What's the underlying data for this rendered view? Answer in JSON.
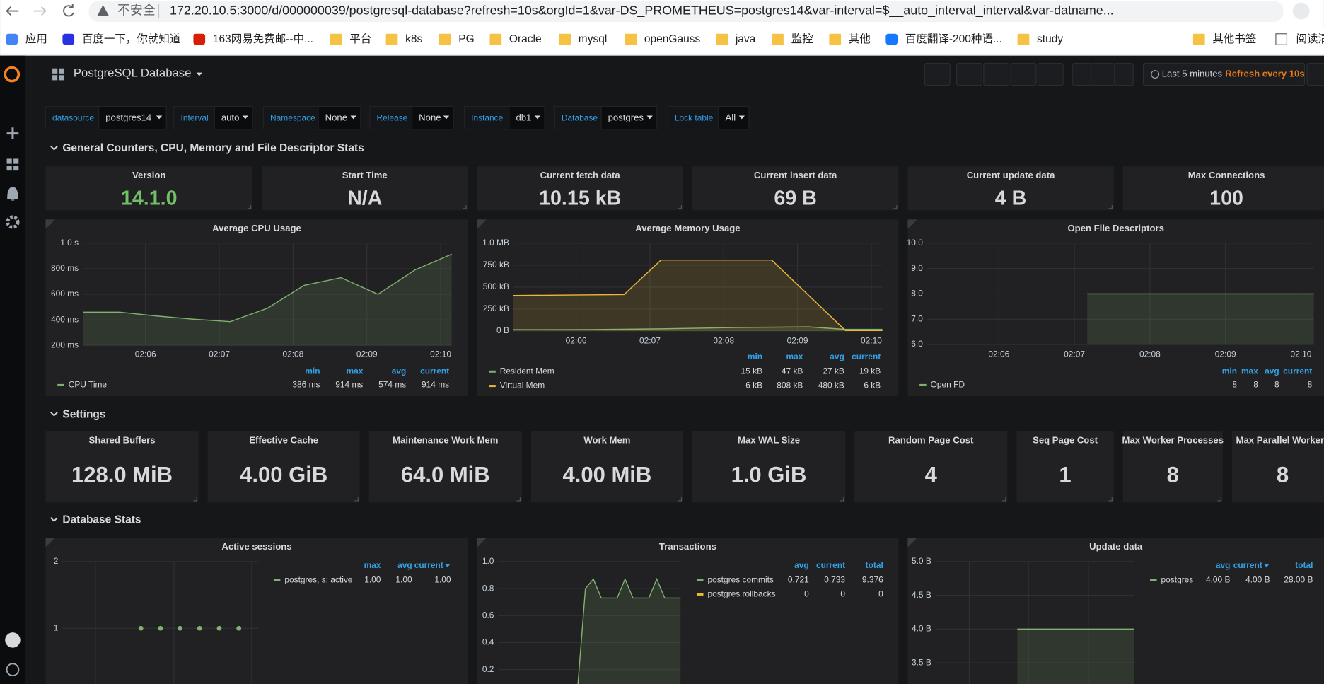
{
  "browser": {
    "security": "不安全",
    "url": "172.20.10.5:3000/d/000000039/postgresql-database?refresh=10s&orgId=1&var-DS_PROMETHEUS=postgres14&var-interval=$__auto_interval_interval&var-datname...",
    "bookmarks": [
      "应用",
      "百度一下，你就知道",
      "163网易免费邮--中...",
      "平台",
      "k8s",
      "PG",
      "Oracle",
      "mysql",
      "openGauss",
      "java",
      "监控",
      "其他",
      "百度翻译-200种语...",
      "study"
    ],
    "other_bookmarks": "其他书签",
    "reading_list": "阅读清单"
  },
  "dashboard": {
    "title": "PostgreSQL Database",
    "time_range": "Last 5 minutes",
    "refresh": "Refresh every 10s",
    "variables": [
      {
        "label": "datasource",
        "value": "postgres14"
      },
      {
        "label": "Interval",
        "value": "auto"
      },
      {
        "label": "Namespace",
        "value": "None"
      },
      {
        "label": "Release",
        "value": "None"
      },
      {
        "label": "Instance",
        "value": "db1"
      },
      {
        "label": "Database",
        "value": "postgres"
      },
      {
        "label": "Lock table",
        "value": "All"
      }
    ],
    "rows": [
      {
        "title": "General Counters, CPU, Memory and File Descriptor Stats",
        "stats": [
          {
            "title": "Version",
            "value": "14.1.0",
            "color": "#73bf69"
          },
          {
            "title": "Start Time",
            "value": "N/A"
          },
          {
            "title": "Current fetch data",
            "value": "10.15 kB"
          },
          {
            "title": "Current insert data",
            "value": "69 B"
          },
          {
            "title": "Current update data",
            "value": "4 B"
          },
          {
            "title": "Max Connections",
            "value": 100
          }
        ],
        "graphs": [
          {
            "title": "Average CPU Usage",
            "type": "line",
            "ylim": [
              200,
              1000
            ],
            "yticks": [
              {
                "value": 1000,
                "label": "1.0 s"
              },
              {
                "value": 800,
                "label": "800 ms"
              },
              {
                "value": 600,
                "label": "600 ms"
              },
              {
                "value": 400,
                "label": "400 ms"
              },
              {
                "value": 200,
                "label": "200 ms"
              }
            ],
            "xlim": [
              5.15,
              10.15
            ],
            "xticks": [
              {
                "value": 6,
                "label": "02:06"
              },
              {
                "value": 7,
                "label": "02:07"
              },
              {
                "value": 8,
                "label": "02:08"
              },
              {
                "value": 9,
                "label": "02:09"
              },
              {
                "value": 10,
                "label": "02:10"
              }
            ],
            "legend_columns": [
              "min",
              "max",
              "avg",
              "current"
            ],
            "series": [
              {
                "name": "CPU Time",
                "color": "#7eb26d",
                "x": [
                  5.15,
                  5.65,
                  6.15,
                  6.65,
                  7.15,
                  7.65,
                  8.15,
                  8.65,
                  9.15,
                  9.65,
                  10.15
                ],
                "values": [
                  460,
                  460,
                  430,
                  405,
                  386,
                  490,
                  670,
                  730,
                  600,
                  790,
                  914
                ],
                "legend_values": [
                  "386 ms",
                  "914 ms",
                  "574 ms",
                  "914 ms"
                ]
              }
            ]
          },
          {
            "title": "Average Memory Usage",
            "type": "line",
            "ylim": [
              0,
              1000
            ],
            "yticks": [
              {
                "value": 1000,
                "label": "1.0 MB"
              },
              {
                "value": 750,
                "label": "750 kB"
              },
              {
                "value": 500,
                "label": "500 kB"
              },
              {
                "value": 250,
                "label": "250 kB"
              },
              {
                "value": 0,
                "label": "0 B"
              }
            ],
            "xlim": [
              5.15,
              10.15
            ],
            "xticks": [
              {
                "value": 6,
                "label": "02:06"
              },
              {
                "value": 7,
                "label": "02:07"
              },
              {
                "value": 8,
                "label": "02:08"
              },
              {
                "value": 9,
                "label": "02:09"
              },
              {
                "value": 10,
                "label": "02:10"
              }
            ],
            "legend_columns": [
              "min",
              "max",
              "avg",
              "current"
            ],
            "series": [
              {
                "name": "Resident Mem",
                "color": "#7eb26d",
                "x": [
                  5.15,
                  6.15,
                  7.15,
                  8.15,
                  9.15,
                  9.65,
                  10.15
                ],
                "values": [
                  15,
                  16,
                  25,
                  40,
                  47,
                  19,
                  19
                ],
                "legend_values": [
                  "15 kB",
                  "47 kB",
                  "27 kB",
                  "19 kB"
                ]
              },
              {
                "name": "Virtual Mem",
                "color": "#eab839",
                "x": [
                  5.15,
                  6.65,
                  7.15,
                  8.65,
                  9.65,
                  10.15
                ],
                "values": [
                  405,
                  415,
                  808,
                  808,
                  6,
                  6
                ],
                "legend_values": [
                  "6 kB",
                  "808 kB",
                  "480 kB",
                  "6 kB"
                ]
              }
            ]
          },
          {
            "title": "Open File Descriptors",
            "type": "line",
            "ylim": [
              6,
              10
            ],
            "yticks": [
              {
                "value": 10,
                "label": "10.0"
              },
              {
                "value": 9,
                "label": "9.0"
              },
              {
                "value": 8,
                "label": "8.0"
              },
              {
                "value": 7,
                "label": "7.0"
              },
              {
                "value": 6,
                "label": "6.0"
              }
            ],
            "xlim": [
              5.05,
              10.17
            ],
            "xticks": [
              {
                "value": 6,
                "label": "02:06"
              },
              {
                "value": 7,
                "label": "02:07"
              },
              {
                "value": 8,
                "label": "02:08"
              },
              {
                "value": 9,
                "label": "02:09"
              },
              {
                "value": 10,
                "label": "02:10"
              }
            ],
            "legend_columns": [
              "min",
              "max",
              "avg",
              "current"
            ],
            "series": [
              {
                "name": "Open FD",
                "color": "#7eb26d",
                "x": [
                  7.17,
                  7.67,
                  8.17,
                  8.67,
                  9.17,
                  9.67,
                  10.17
                ],
                "values": [
                  8,
                  8,
                  8,
                  8,
                  8,
                  8,
                  8
                ],
                "legend_values": [
                  8,
                  8,
                  8,
                  8
                ]
              }
            ]
          }
        ]
      },
      {
        "title": "Settings",
        "stats": [
          {
            "title": "Shared Buffers",
            "value": "128.0 MiB"
          },
          {
            "title": "Effective Cache",
            "value": "4.00 GiB"
          },
          {
            "title": "Maintenance Work Mem",
            "value": "64.0 MiB"
          },
          {
            "title": "Work Mem",
            "value": "4.00 MiB"
          },
          {
            "title": "Max WAL Size",
            "value": "1.0 GiB"
          },
          {
            "title": "Random Page Cost",
            "value": 4
          },
          {
            "title": "Seq Page Cost",
            "value": 1
          },
          {
            "title": "Max Worker Processes",
            "value": 8
          },
          {
            "title": "Max Parallel Workers",
            "value": 8
          }
        ]
      },
      {
        "title": "Database Stats",
        "graphs": [
          {
            "title": "Active sessions",
            "type": "scatter",
            "ylim": [
              0,
              2
            ],
            "yticks": [
              2,
              1
            ],
            "legend_columns": [
              "max",
              "avg",
              "current"
            ],
            "sort_by": "current",
            "series": [
              {
                "name": "postgres, s: active",
                "color": "#7eb26d",
                "values": [
                  null,
                  null,
                  null,
                  null,
                  1,
                  1,
                  1,
                  1,
                  1,
                  1,
                  null
                ],
                "legend_values": [
                  "1.00",
                  "1.00",
                  "1.00"
                ]
              }
            ]
          },
          {
            "title": "Transactions",
            "type": "line",
            "ylim": [
              0,
              1
            ],
            "yticks": [
              {
                "value": 1,
                "label": "1.0"
              },
              0.8,
              0.6,
              0.4,
              0.2
            ],
            "legend_columns": [
              "avg",
              "current",
              "total"
            ],
            "series": [
              {
                "name": "postgres commits",
                "color": "#7eb26d",
                "values": [
                  null,
                  null,
                  null,
                  null,
                  null,
                  null,
                  null,
                  null,
                  null,
                  null,
                  0.05,
                  0.8,
                  0.87,
                  0.73,
                  0.73,
                  0.73,
                  0.87,
                  0.73,
                  0.73,
                  0.73,
                  0.87,
                  0.73,
                  0.73,
                  0.73
                ],
                "legend_values": [
                  "0.721",
                  "0.733",
                  "9.376"
                ]
              },
              {
                "name": "postgres rollbacks",
                "color": "#eab839",
                "values": [
                  null,
                  null,
                  null,
                  null,
                  null,
                  null,
                  null,
                  null,
                  null,
                  null,
                  0,
                  0,
                  0,
                  0,
                  0,
                  0,
                  0,
                  0,
                  0,
                  0,
                  0,
                  0,
                  0,
                  0
                ],
                "legend_values": [
                  0,
                  0,
                  0
                ]
              }
            ]
          },
          {
            "title": "Update data",
            "type": "line",
            "ylim": [
              3,
              5
            ],
            "yticks": [
              {
                "value": 5,
                "label": "5.0 B"
              },
              {
                "value": 4.5,
                "label": "4.5 B"
              },
              {
                "value": 4,
                "label": "4.0 B"
              },
              {
                "value": 3.5,
                "label": "3.5 B"
              }
            ],
            "legend_columns": [
              "avg",
              "current",
              "total"
            ],
            "sort_by": "current",
            "series": [
              {
                "name": "postgres",
                "color": "#7eb26d",
                "values": [
                  null,
                  null,
                  null,
                  null,
                  null,
                  null,
                  null,
                  4,
                  4,
                  4,
                  4,
                  4,
                  4,
                  4,
                  4,
                  4,
                  4,
                  4
                ],
                "legend_values": [
                  "4.00 B",
                  "4.00 B",
                  "28.00 B"
                ]
              }
            ]
          }
        ]
      }
    ]
  }
}
